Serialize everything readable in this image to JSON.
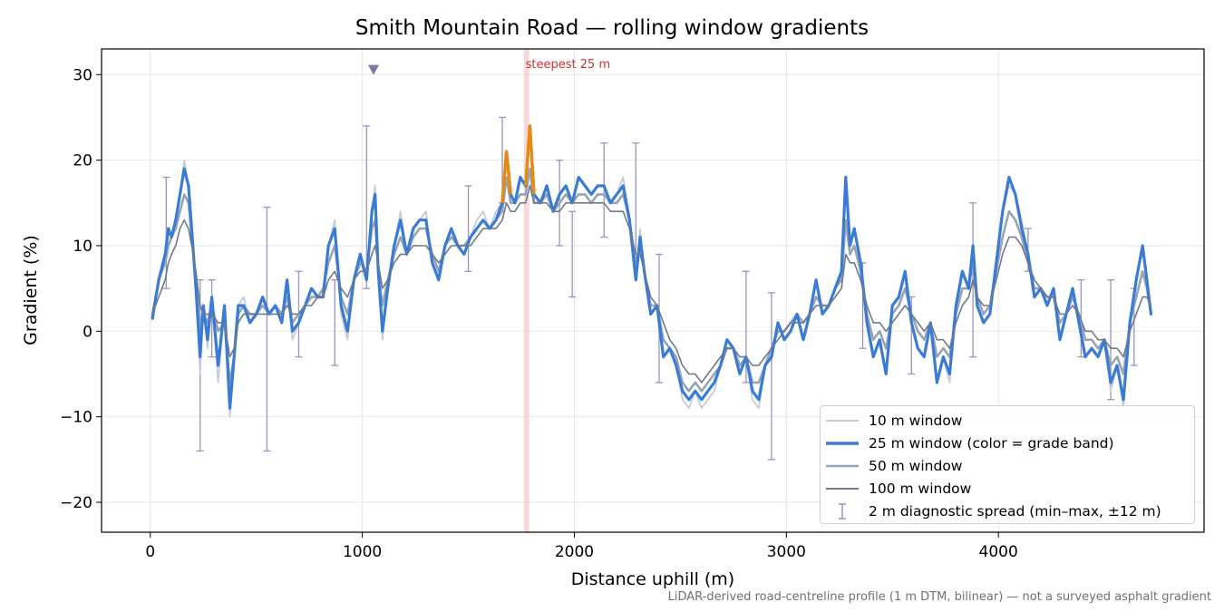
{
  "chart_data": {
    "type": "line",
    "title": "Smith Mountain Road — rolling window gradients",
    "xlabel": "Distance uphill (m)",
    "ylabel": "Gradient (%)",
    "xlim": [
      -230,
      4970
    ],
    "ylim": [
      -23.5,
      33
    ],
    "xticks": [
      0,
      1000,
      2000,
      3000,
      4000
    ],
    "yticks": [
      -20,
      -10,
      0,
      10,
      20,
      30
    ],
    "xtick_labels": [
      "0",
      "1000",
      "2000",
      "3000",
      "4000"
    ],
    "ytick_labels": [
      "−20",
      "−10",
      "0",
      "10",
      "20",
      "30"
    ],
    "grid": true,
    "legend_position": "lower-right",
    "legend": [
      "10 m window",
      "25 m window (color = grade band)",
      "50 m window",
      "100 m window",
      "2 m diagnostic spread (min–max, ±12 m)"
    ],
    "annotation_steepest": {
      "label": "steepest 25 m",
      "x_start": 1762,
      "x_end": 1787
    },
    "marker_triangle": {
      "x": 1053,
      "y": 30.5
    },
    "footnote": "LiDAR-derived road-centreline profile (1 m DTM, bilinear) — not a surveyed asphalt gradient",
    "x": [
      10,
      40,
      70,
      85,
      100,
      120,
      140,
      160,
      180,
      195,
      215,
      235,
      250,
      270,
      290,
      320,
      350,
      375,
      395,
      415,
      440,
      470,
      500,
      530,
      560,
      590,
      620,
      645,
      670,
      700,
      730,
      760,
      790,
      815,
      840,
      870,
      900,
      930,
      960,
      990,
      1020,
      1045,
      1060,
      1075,
      1095,
      1120,
      1150,
      1180,
      1210,
      1240,
      1270,
      1300,
      1330,
      1360,
      1390,
      1420,
      1450,
      1480,
      1510,
      1540,
      1570,
      1600,
      1630,
      1660,
      1680,
      1700,
      1720,
      1745,
      1770,
      1790,
      1810,
      1840,
      1870,
      1900,
      1930,
      1960,
      1990,
      2020,
      2050,
      2080,
      2110,
      2140,
      2170,
      2200,
      2230,
      2260,
      2290,
      2310,
      2330,
      2360,
      2390,
      2420,
      2450,
      2480,
      2510,
      2540,
      2570,
      2600,
      2630,
      2660,
      2690,
      2720,
      2750,
      2780,
      2810,
      2840,
      2870,
      2900,
      2930,
      2960,
      2990,
      3020,
      3050,
      3080,
      3110,
      3140,
      3170,
      3200,
      3230,
      3260,
      3280,
      3300,
      3320,
      3350,
      3380,
      3410,
      3440,
      3470,
      3500,
      3530,
      3560,
      3590,
      3620,
      3650,
      3680,
      3710,
      3740,
      3770,
      3800,
      3830,
      3860,
      3880,
      3900,
      3930,
      3960,
      3990,
      4020,
      4050,
      4080,
      4110,
      4140,
      4170,
      4200,
      4230,
      4260,
      4290,
      4320,
      4350,
      4380,
      4410,
      4440,
      4470,
      4500,
      4530,
      4560,
      4590,
      4620,
      4650,
      4680,
      4700,
      4720
    ],
    "series": [
      {
        "name": "10 m window",
        "color": "#c3ccd8",
        "values": [
          1.5,
          6,
          9,
          12,
          11,
          13,
          16,
          20,
          17,
          12,
          5,
          -5,
          3,
          -2,
          4,
          -6,
          3,
          -10,
          -4,
          3,
          4,
          1,
          2,
          4,
          2,
          3,
          1,
          6,
          -1,
          1,
          3,
          5,
          4,
          4,
          10,
          13,
          2,
          -1,
          6,
          9,
          6,
          14,
          17,
          7,
          -1,
          5,
          10,
          14,
          9,
          12,
          13,
          14,
          8,
          6,
          10,
          12,
          10,
          9,
          11,
          13,
          14,
          12,
          14,
          15,
          21,
          16,
          15,
          18,
          17,
          23,
          16,
          15,
          17,
          14,
          16,
          17,
          15,
          18,
          17,
          16,
          17,
          17,
          15,
          16,
          18,
          13,
          6,
          12,
          7,
          2,
          3,
          -3,
          -2,
          -4,
          -8,
          -9,
          -7,
          -9,
          -8,
          -7,
          -4,
          -1,
          -2,
          -5,
          -3,
          -8,
          -9,
          -4,
          -3,
          1,
          -1,
          0,
          2,
          -1,
          2,
          6,
          2,
          3,
          5,
          7,
          17,
          10,
          12,
          8,
          1,
          -3,
          -1,
          -5,
          3,
          4,
          7,
          1,
          -2,
          -3,
          1,
          -6,
          -3,
          -6,
          3,
          7,
          5,
          10,
          3,
          1,
          2,
          8,
          14,
          17,
          16,
          13,
          9,
          4,
          5,
          3,
          5,
          -1,
          2,
          5,
          1,
          -3,
          -2,
          -3,
          -1,
          -7,
          -4,
          -9,
          1,
          6,
          10,
          6,
          2
        ]
      },
      {
        "name": "25 m window (color = grade band)",
        "color": "#3a7bd5",
        "values": [
          1.5,
          6,
          9,
          12,
          11,
          13,
          16,
          19,
          17,
          12,
          5,
          -3,
          3,
          -1,
          4,
          -4,
          3,
          -9,
          -3,
          3,
          3,
          1,
          2,
          4,
          2,
          3,
          1,
          6,
          0,
          1,
          3,
          5,
          4,
          4,
          10,
          12,
          3,
          0,
          6,
          9,
          6,
          14,
          16,
          7,
          0,
          5,
          10,
          13,
          9,
          12,
          13,
          13,
          8,
          6,
          10,
          12,
          10,
          9,
          11,
          12,
          13,
          12,
          13,
          15,
          21,
          16,
          15,
          18,
          17,
          24,
          16,
          15,
          17,
          14,
          16,
          17,
          15,
          18,
          17,
          16,
          17,
          17,
          15,
          16,
          17,
          13,
          6,
          11,
          7,
          2,
          3,
          -3,
          -2,
          -4,
          -7,
          -8,
          -7,
          -8,
          -7,
          -6,
          -4,
          -1,
          -2,
          -5,
          -3,
          -7,
          -8,
          -4,
          -3,
          1,
          -1,
          0,
          2,
          -1,
          2,
          6,
          2,
          3,
          5,
          7,
          18,
          10,
          12,
          8,
          1,
          -3,
          -1,
          -5,
          3,
          4,
          7,
          1,
          -2,
          -3,
          1,
          -6,
          -3,
          -5,
          3,
          7,
          5,
          10,
          3,
          1,
          2,
          8,
          14,
          18,
          16,
          12,
          9,
          4,
          5,
          3,
          5,
          -1,
          2,
          5,
          1,
          -3,
          -2,
          -3,
          -1,
          -6,
          -4,
          -8,
          1,
          6,
          10,
          6,
          2
        ]
      },
      {
        "name": "50 m window",
        "color": "#97a4b4",
        "values": [
          2,
          6,
          8,
          10,
          11,
          12,
          14,
          16,
          15,
          11,
          6,
          1,
          2,
          1,
          3,
          0,
          1,
          -6,
          -3,
          2,
          3,
          2,
          2,
          3,
          2,
          3,
          2,
          4,
          1,
          2,
          3,
          4,
          4,
          5,
          8,
          10,
          4,
          2,
          6,
          8,
          7,
          12,
          13,
          7,
          3,
          6,
          9,
          11,
          9,
          11,
          12,
          12,
          9,
          7,
          10,
          11,
          10,
          10,
          11,
          12,
          13,
          12,
          13,
          14,
          18,
          15,
          15,
          16,
          16,
          19,
          15,
          15,
          16,
          14,
          15,
          16,
          15,
          16,
          16,
          15,
          16,
          16,
          15,
          15,
          16,
          13,
          8,
          10,
          7,
          3,
          3,
          -1,
          -2,
          -3,
          -6,
          -7,
          -6,
          -7,
          -6,
          -5,
          -4,
          -2,
          -2,
          -4,
          -3,
          -6,
          -6,
          -4,
          -2,
          0,
          0,
          1,
          2,
          1,
          2,
          4,
          3,
          3,
          5,
          6,
          13,
          9,
          10,
          7,
          2,
          -1,
          0,
          -2,
          2,
          3,
          5,
          2,
          0,
          -1,
          1,
          -3,
          -2,
          -3,
          2,
          5,
          5,
          8,
          4,
          2,
          3,
          7,
          11,
          14,
          13,
          11,
          8,
          5,
          5,
          4,
          4,
          1,
          2,
          4,
          2,
          -1,
          -1,
          -2,
          -1,
          -4,
          -3,
          -5,
          1,
          4,
          7,
          5,
          2
        ]
      },
      {
        "name": "100 m window",
        "color": "#6f7a8a",
        "values": [
          2,
          4,
          6,
          8,
          9,
          10,
          12,
          13,
          12,
          10,
          7,
          3,
          2,
          2,
          2,
          1,
          1,
          -3,
          -2,
          1,
          2,
          2,
          2,
          2,
          2,
          2,
          2,
          3,
          2,
          2,
          3,
          3,
          4,
          4,
          6,
          7,
          5,
          4,
          6,
          7,
          7,
          9,
          10,
          8,
          5,
          6,
          8,
          9,
          9,
          10,
          10,
          10,
          9,
          8,
          9,
          10,
          10,
          10,
          10,
          11,
          12,
          12,
          12,
          13,
          15,
          14,
          14,
          15,
          15,
          17,
          15,
          15,
          15,
          14,
          14,
          15,
          15,
          15,
          15,
          15,
          15,
          15,
          14,
          14,
          14,
          12,
          9,
          9,
          7,
          4,
          3,
          1,
          -1,
          -2,
          -4,
          -5,
          -5,
          -6,
          -5,
          -4,
          -3,
          -2,
          -2,
          -3,
          -3,
          -4,
          -4,
          -3,
          -2,
          -1,
          0,
          1,
          1,
          1,
          2,
          3,
          3,
          3,
          4,
          5,
          9,
          8,
          8,
          6,
          3,
          1,
          1,
          0,
          1,
          2,
          3,
          2,
          1,
          0,
          1,
          -1,
          -1,
          -2,
          1,
          3,
          4,
          6,
          4,
          3,
          3,
          6,
          9,
          11,
          11,
          10,
          8,
          6,
          5,
          4,
          4,
          2,
          2,
          3,
          2,
          0,
          0,
          -1,
          -1,
          -2,
          -2,
          -3,
          0,
          2,
          4,
          4,
          3
        ]
      }
    ],
    "diagnostic_spread": [
      {
        "x": 75,
        "min": 5,
        "max": 18
      },
      {
        "x": 235,
        "min": -14,
        "max": 6
      },
      {
        "x": 290,
        "min": -3,
        "max": 6
      },
      {
        "x": 550,
        "min": -14,
        "max": 14.5
      },
      {
        "x": 700,
        "min": -3,
        "max": 7
      },
      {
        "x": 870,
        "min": -4,
        "max": 6
      },
      {
        "x": 1020,
        "min": 5,
        "max": 24
      },
      {
        "x": 1500,
        "min": 7,
        "max": 17
      },
      {
        "x": 1660,
        "min": 15,
        "max": 25
      },
      {
        "x": 1930,
        "min": 10,
        "max": 20
      },
      {
        "x": 1990,
        "min": 4,
        "max": 14
      },
      {
        "x": 2140,
        "min": 11,
        "max": 22
      },
      {
        "x": 2290,
        "min": 9,
        "max": 22
      },
      {
        "x": 2400,
        "min": -6,
        "max": 9
      },
      {
        "x": 2810,
        "min": -6,
        "max": 7
      },
      {
        "x": 2930,
        "min": -15,
        "max": 4.5
      },
      {
        "x": 3360,
        "min": -2,
        "max": 8
      },
      {
        "x": 3590,
        "min": -5,
        "max": 4
      },
      {
        "x": 3880,
        "min": -3,
        "max": 15
      },
      {
        "x": 4140,
        "min": 7,
        "max": 12
      },
      {
        "x": 4390,
        "min": -3,
        "max": 6
      },
      {
        "x": 4530,
        "min": -8,
        "max": 6
      },
      {
        "x": 4640,
        "min": -4,
        "max": 5
      }
    ]
  },
  "colors": {
    "ten_m": "#c3ccd8",
    "twenty_five_m": "#3a7bd5",
    "fifty_m": "#97a4b4",
    "hundred_m": "#6f7a8a",
    "spread": "#9a93bf",
    "steepest_band": "#f5c8c8",
    "steepest_text": "#cc3333",
    "orange_band": "#e88a0f",
    "grid": "#e6e6e6"
  }
}
